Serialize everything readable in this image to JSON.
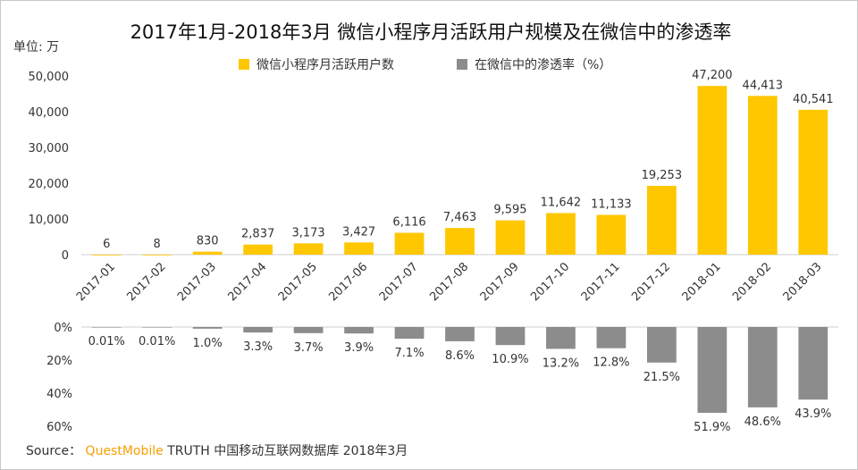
{
  "source": {
    "prefix": "Source：",
    "brand": "QuestMobile",
    "rest": "TRUTH 中国移动互联网数据库 2018年3月"
  },
  "colors": {
    "mau_bar": "#FFC700",
    "penetration_bar": "#8C8C8C",
    "brand": "#F5A000"
  },
  "chart_data": [
    {
      "type": "bar",
      "title": "2017年1月-2018年3月 微信小程序月活跃用户规模及在微信中的渗透率",
      "unit_label": "单位: 万",
      "categories": [
        "2017-01",
        "2017-02",
        "2017-03",
        "2017-04",
        "2017-05",
        "2017-06",
        "2017-07",
        "2017-08",
        "2017-09",
        "2017-10",
        "2017-11",
        "2017-12",
        "2018-01",
        "2018-02",
        "2018-03"
      ],
      "series": [
        {
          "name": "微信小程序月活跃用户数",
          "values": [
            6,
            8,
            830,
            2837,
            3173,
            3427,
            6116,
            7463,
            9595,
            11642,
            11133,
            19253,
            47200,
            44413,
            40541
          ],
          "labels": [
            "6",
            "8",
            "830",
            "2,837",
            "3,173",
            "3,427",
            "6,116",
            "7,463",
            "9,595",
            "11,642",
            "11,133",
            "19,253",
            "47,200",
            "44,413",
            "40,541"
          ]
        }
      ],
      "yticks": [
        "0",
        "10,000",
        "20,000",
        "30,000",
        "40,000",
        "50,000"
      ],
      "ylim": [
        0,
        50000
      ],
      "legend_position": "top"
    },
    {
      "type": "bar",
      "orientation": "downward",
      "categories": [
        "2017-01",
        "2017-02",
        "2017-03",
        "2017-04",
        "2017-05",
        "2017-06",
        "2017-07",
        "2017-08",
        "2017-09",
        "2017-10",
        "2017-11",
        "2017-12",
        "2018-01",
        "2018-02",
        "2018-03"
      ],
      "series": [
        {
          "name": "在微信中的渗透率（%）",
          "values": [
            0.01,
            0.01,
            1.0,
            3.3,
            3.7,
            3.9,
            7.1,
            8.6,
            10.9,
            13.2,
            12.8,
            21.5,
            51.9,
            48.6,
            43.9
          ],
          "labels": [
            "0.01%",
            "0.01%",
            "1.0%",
            "3.3%",
            "3.7%",
            "3.9%",
            "7.1%",
            "8.6%",
            "10.9%",
            "13.2%",
            "12.8%",
            "21.5%",
            "51.9%",
            "48.6%",
            "43.9%"
          ]
        }
      ],
      "yticks": [
        "0%",
        "20%",
        "40%",
        "60%"
      ],
      "ylim": [
        0,
        60
      ]
    }
  ]
}
